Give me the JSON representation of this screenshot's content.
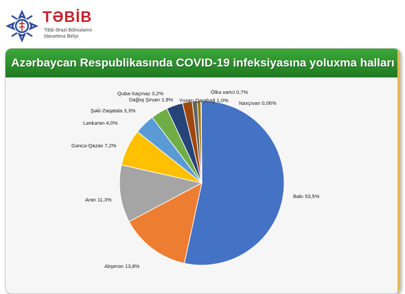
{
  "header": {
    "brand": "TƏBİB",
    "subtitle_line1": "Tibbi Ərazi Bölmələrini",
    "subtitle_line2": "İdarəetmə Birliyi"
  },
  "chart_data": {
    "type": "pie",
    "title": "Azərbaycan Respublikasında COVID-19 infeksiyasına yoluxma halları",
    "slices": [
      {
        "name": "Bakı",
        "label": "Bakı 53,5%",
        "value": 53.5,
        "color": "#4472c4"
      },
      {
        "name": "Abşeron",
        "label": "Abşeron 13,8%",
        "value": 13.8,
        "color": "#ed7d31"
      },
      {
        "name": "Aran",
        "label": "Aran 11,3%",
        "value": 11.3,
        "color": "#a5a5a5"
      },
      {
        "name": "Gəncə-Qazax",
        "label": "Gəncə-Qazax 7,2%",
        "value": 7.2,
        "color": "#ffc000"
      },
      {
        "name": "Lənkəran",
        "label": "Lənkəran 4,0%",
        "value": 4.0,
        "color": "#5b9bd5"
      },
      {
        "name": "Şəki-Zaqatala",
        "label": "Şəki-Zaqatala 3,3%",
        "value": 3.3,
        "color": "#70ad47"
      },
      {
        "name": "Quba-Xaçmaz",
        "label": "Quba-Xaçmaz 3,2%",
        "value": 3.2,
        "color": "#264478"
      },
      {
        "name": "Dağlıq Şirvan",
        "label": "Dağlıq Şirvan 1,9%",
        "value": 1.9,
        "color": "#9e480e"
      },
      {
        "name": "Yuxarı Qarabağ",
        "label": "Yuxarı Qarabağ 1,0%",
        "value": 1.0,
        "color": "#636363"
      },
      {
        "name": "Ölkə xarici",
        "label": "Ölkə xarici 0,7%",
        "value": 0.7,
        "color": "#997300"
      },
      {
        "name": "Naxçıvan",
        "label": "Naxçıvan 0,06%",
        "value": 0.06,
        "color": "#255e91"
      }
    ]
  }
}
